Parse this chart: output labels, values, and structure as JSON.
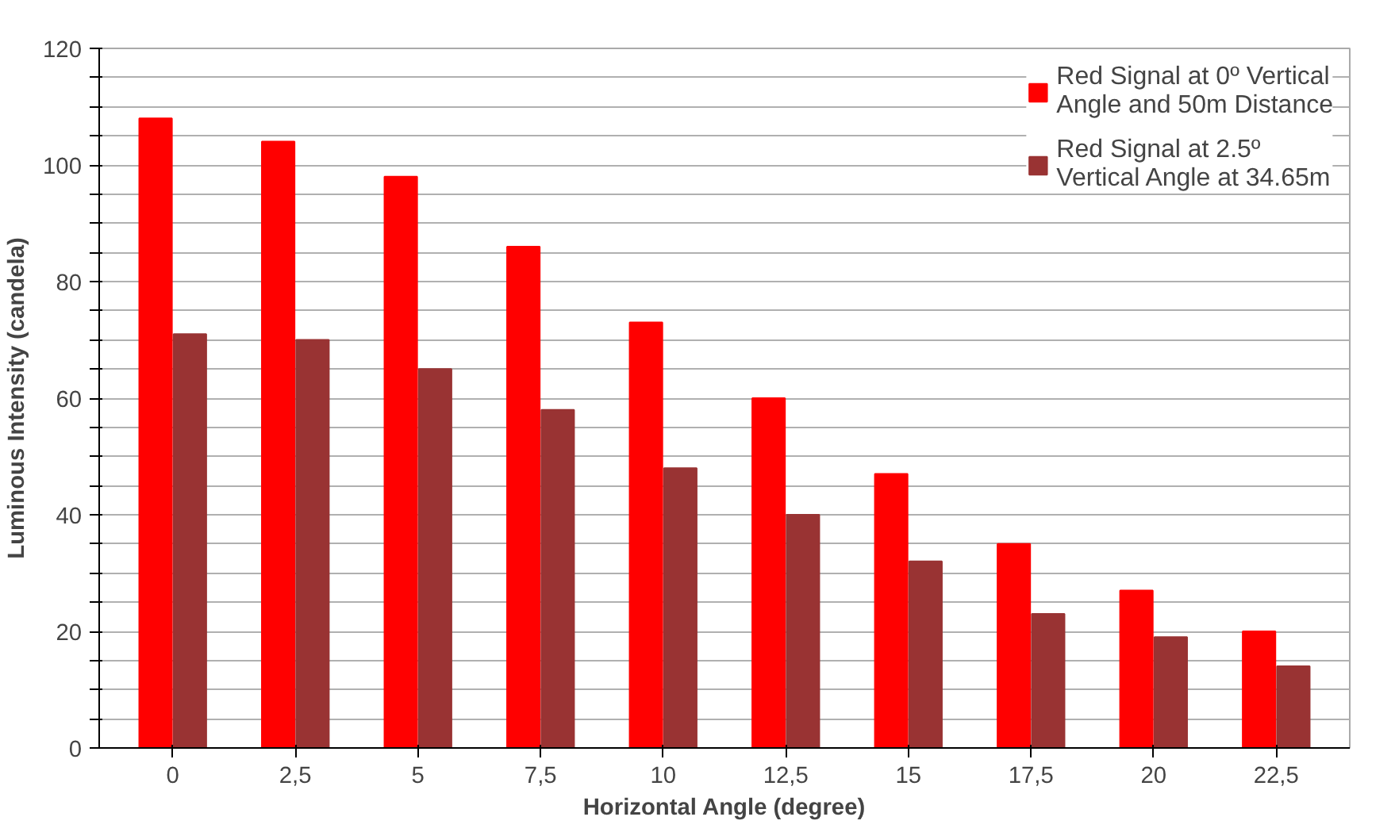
{
  "chart_data": {
    "type": "bar",
    "xlabel": "Horizontal Angle (degree)",
    "ylabel": "Luminous Intensity (candela)",
    "categories": [
      "0",
      "2,5",
      "5",
      "7,5",
      "10",
      "12,5",
      "15",
      "17,5",
      "20",
      "22,5"
    ],
    "series": [
      {
        "name": "Red Signal at 0º Vertical Angle and 50m Distance",
        "color": "#ff0000",
        "values": [
          108,
          104,
          98,
          86,
          73,
          60,
          47,
          35,
          27,
          20
        ]
      },
      {
        "name": "Red Signal at 2.5º Vertical Angle at 34.65m",
        "color": "#993333",
        "values": [
          71,
          70,
          65,
          58,
          48,
          40,
          32,
          23,
          19,
          14
        ]
      }
    ],
    "ylim": [
      0,
      120
    ],
    "yticks": [
      0,
      {
        "value": 5,
        "label": null
      },
      {
        "value": 10,
        "label": null
      },
      {
        "value": 15,
        "label": null
      },
      20,
      {
        "value": 25,
        "label": null
      },
      {
        "value": 30,
        "label": null
      },
      {
        "value": 35,
        "label": null
      },
      40,
      {
        "value": 45,
        "label": null
      },
      {
        "value": 50,
        "label": null
      },
      {
        "value": 55,
        "label": null
      },
      60,
      {
        "value": 65,
        "label": null
      },
      {
        "value": 70,
        "label": null
      },
      {
        "value": 75,
        "label": null
      },
      80,
      {
        "value": 85,
        "label": null
      },
      {
        "value": 90,
        "label": null
      },
      {
        "value": 95,
        "label": null
      },
      100,
      {
        "value": 105,
        "label": null
      },
      {
        "value": 110,
        "label": null
      },
      {
        "value": 115,
        "label": null
      },
      120
    ],
    "grid": "y",
    "legend": "top right"
  }
}
